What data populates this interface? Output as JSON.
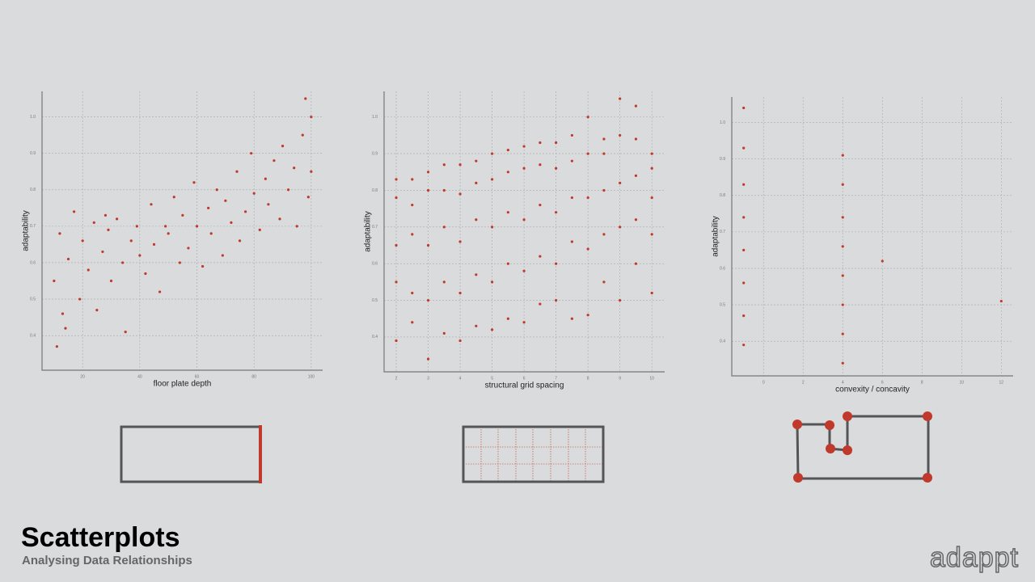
{
  "chart_data": [
    {
      "type": "scatter",
      "y_label": "adaptability",
      "x_label": "floor plate depth",
      "color": "#c0392b",
      "grid": true,
      "xlim": [
        5.8,
        104
      ],
      "ylim": [
        0.305,
        1.07
      ],
      "xticks": [
        20,
        40,
        60,
        80,
        100
      ],
      "yticks": [
        0.4,
        0.5,
        0.6,
        0.7,
        0.8,
        0.9,
        {
          "value": 1,
          "label": "1.0"
        }
      ],
      "x": [
        10,
        12,
        14,
        15,
        17,
        19,
        20,
        22,
        24,
        25,
        27,
        29,
        30,
        32,
        34,
        35,
        37,
        39,
        40,
        42,
        44,
        45,
        47,
        49,
        50,
        52,
        54,
        55,
        57,
        59,
        60,
        62,
        64,
        65,
        67,
        69,
        70,
        72,
        74,
        75,
        77,
        79,
        80,
        82,
        84,
        85,
        87,
        89,
        90,
        92,
        94,
        95,
        97,
        99,
        100,
        11,
        13,
        100,
        98,
        28
      ],
      "values": [
        0.55,
        0.68,
        0.42,
        0.61,
        0.74,
        0.5,
        0.66,
        0.58,
        0.71,
        0.47,
        0.63,
        0.69,
        0.55,
        0.72,
        0.6,
        0.41,
        0.66,
        0.7,
        0.62,
        0.57,
        0.76,
        0.65,
        0.52,
        0.7,
        0.68,
        0.78,
        0.6,
        0.73,
        0.64,
        0.82,
        0.7,
        0.59,
        0.75,
        0.68,
        0.8,
        0.62,
        0.77,
        0.71,
        0.85,
        0.66,
        0.74,
        0.9,
        0.79,
        0.69,
        0.83,
        0.76,
        0.88,
        0.72,
        0.92,
        0.8,
        0.86,
        0.7,
        0.95,
        0.78,
        1.0,
        0.37,
        0.46,
        0.85,
        1.05,
        0.73
      ]
    },
    {
      "type": "scatter",
      "y_label": "adaptability",
      "x_label": "structural grid spacing",
      "color": "#c0392b",
      "grid": true,
      "xlim": [
        1.62,
        10.4
      ],
      "ylim": [
        0.305,
        1.07
      ],
      "xticks": [
        2,
        3,
        4,
        5,
        6,
        7,
        8,
        9,
        10
      ],
      "yticks": [
        0.4,
        0.5,
        0.6,
        0.7,
        0.8,
        0.9,
        {
          "value": 1,
          "label": "1.0"
        }
      ],
      "x": [
        2,
        2,
        2,
        2,
        2,
        2.5,
        2.5,
        2.5,
        2.5,
        2.5,
        3,
        3,
        3,
        3,
        3,
        3.5,
        3.5,
        3.5,
        3.5,
        3.5,
        4,
        4,
        4,
        4,
        4,
        4.5,
        4.5,
        4.5,
        4.5,
        4.5,
        5,
        5,
        5,
        5,
        5,
        5.5,
        5.5,
        5.5,
        5.5,
        5.5,
        6,
        6,
        6,
        6,
        6,
        6.5,
        6.5,
        6.5,
        6.5,
        6.5,
        7,
        7,
        7,
        7,
        7,
        7.5,
        7.5,
        7.5,
        7.5,
        7.5,
        8,
        8,
        8,
        8,
        8,
        8.5,
        8.5,
        8.5,
        8.5,
        8.5,
        9,
        9,
        9,
        9,
        9,
        9.5,
        9.5,
        9.5,
        9.5,
        9.5,
        10,
        10,
        10,
        10,
        10
      ],
      "values": [
        0.39,
        0.55,
        0.65,
        0.78,
        0.83,
        0.44,
        0.52,
        0.68,
        0.76,
        0.83,
        0.34,
        0.5,
        0.65,
        0.8,
        0.85,
        0.41,
        0.55,
        0.7,
        0.8,
        0.87,
        0.39,
        0.52,
        0.66,
        0.79,
        0.87,
        0.43,
        0.57,
        0.72,
        0.82,
        0.88,
        0.42,
        0.55,
        0.7,
        0.83,
        0.9,
        0.45,
        0.6,
        0.74,
        0.85,
        0.91,
        0.44,
        0.58,
        0.72,
        0.86,
        0.92,
        0.49,
        0.62,
        0.76,
        0.87,
        0.93,
        0.5,
        0.6,
        0.74,
        0.86,
        0.93,
        0.45,
        0.66,
        0.78,
        0.88,
        0.95,
        0.46,
        0.64,
        0.78,
        0.9,
        1.0,
        0.55,
        0.68,
        0.8,
        0.9,
        0.94,
        0.5,
        0.7,
        0.82,
        0.95,
        1.05,
        0.6,
        0.72,
        0.84,
        0.94,
        1.03,
        0.52,
        0.68,
        0.78,
        0.86,
        0.9
      ]
    },
    {
      "type": "scatter",
      "y_label": "adaptability",
      "x_label": "convexity / concavity",
      "color": "#c0392b",
      "grid": true,
      "xlim": [
        -1.6,
        12.6
      ],
      "ylim": [
        0.305,
        1.07
      ],
      "xticks": [
        0,
        2,
        4,
        6,
        8,
        10,
        12
      ],
      "yticks": [
        0.4,
        0.5,
        0.6,
        0.7,
        0.8,
        0.9,
        {
          "value": 1,
          "label": "1.0"
        }
      ],
      "x": [
        -1,
        -1,
        -1,
        -1,
        -1,
        -1,
        -1,
        -1,
        4,
        4,
        4,
        4,
        4,
        4,
        4,
        4,
        6,
        12
      ],
      "values": [
        0.39,
        0.47,
        0.56,
        0.65,
        0.74,
        0.83,
        0.93,
        1.04,
        0.34,
        0.42,
        0.5,
        0.58,
        0.66,
        0.74,
        0.83,
        0.91,
        0.62,
        0.51
      ]
    }
  ],
  "slide": {
    "title": "Scatterplots",
    "subtitle": "Analysing Data Relationships",
    "logo": "adappt"
  }
}
